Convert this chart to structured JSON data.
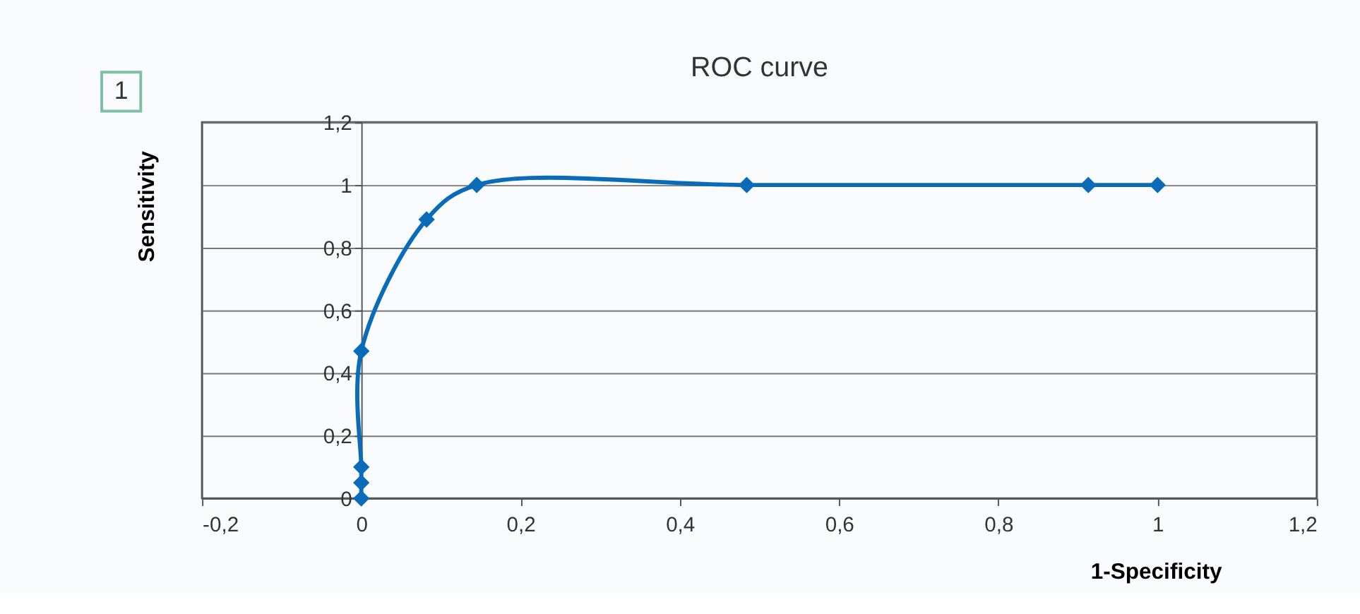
{
  "chart_data": {
    "type": "line",
    "title": "ROC curve",
    "xlabel": "1-Specificity",
    "ylabel": "Sensitivity",
    "annotations": [
      "1"
    ],
    "x": [
      0,
      0,
      0,
      0,
      0.082,
      0.145,
      0.484,
      0.913,
      1
    ],
    "series": [
      {
        "color": "#0a6cb8",
        "values": [
          0,
          0.05,
          0.1,
          0.47,
          0.89,
          1,
          1,
          1,
          1
        ]
      }
    ],
    "xlim": [
      -0.2,
      1.2
    ],
    "ylim": [
      0,
      1.2
    ],
    "xticks": [
      {
        "value": -0.2,
        "label": "-0,2"
      },
      0,
      {
        "value": 0.2,
        "label": "0,2"
      },
      {
        "value": 0.4,
        "label": "0,4"
      },
      {
        "value": 0.6,
        "label": "0,6"
      },
      {
        "value": 0.8,
        "label": "0,8"
      },
      1,
      {
        "value": 1.2,
        "label": "1,2"
      }
    ],
    "yticks": [
      0,
      {
        "value": 0.2,
        "label": "0,2"
      },
      {
        "value": 0.4,
        "label": "0,4"
      },
      {
        "value": 0.6,
        "label": "0,6"
      },
      {
        "value": 0.8,
        "label": "0,8"
      },
      1,
      {
        "value": 1.2,
        "label": "1,2"
      }
    ],
    "grid": "y",
    "marker": "diamond",
    "line_style": "solid"
  }
}
